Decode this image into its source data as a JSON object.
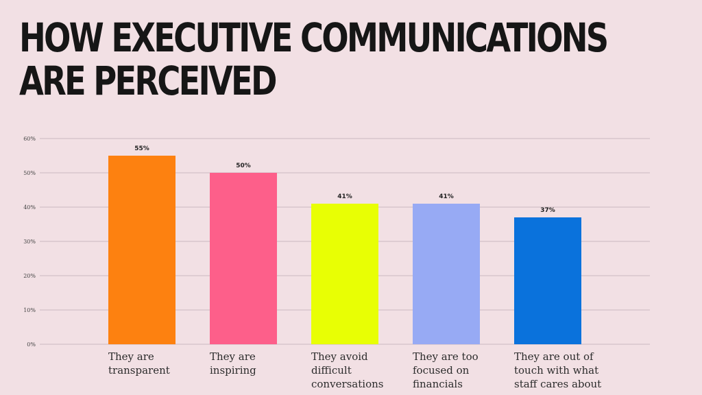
{
  "title_lines": [
    "HOW EXECUTIVE COMMUNICATIONS",
    "ARE PERCEIVED"
  ],
  "chart_data": {
    "type": "bar",
    "title": "HOW EXECUTIVE COMMUNICATIONS ARE PERCEIVED",
    "xlabel": "",
    "ylabel": "",
    "ylim": [
      0,
      60
    ],
    "yticks": [
      0,
      10,
      20,
      30,
      40,
      50,
      60
    ],
    "ytick_labels": [
      "0%",
      "10%",
      "20%",
      "30%",
      "40%",
      "50%",
      "60%"
    ],
    "grid": "horizontal",
    "categories": [
      [
        "They are",
        "transparent"
      ],
      [
        "They are",
        "inspiring"
      ],
      [
        "They avoid",
        "difficult",
        "conversations"
      ],
      [
        "They are too",
        "focused on",
        "financials"
      ],
      [
        "They are out of",
        "touch with what",
        "staff cares about"
      ]
    ],
    "values": [
      55,
      50,
      41,
      41,
      37
    ],
    "data_labels": [
      "55%",
      "50%",
      "41%",
      "41%",
      "37%"
    ],
    "colors": [
      "#fd8110",
      "#fd5f8a",
      "#e8ff04",
      "#97aaf4",
      "#0a72dc"
    ],
    "gridline_color": "#c9b9bf",
    "background": "#f2e0e4"
  }
}
